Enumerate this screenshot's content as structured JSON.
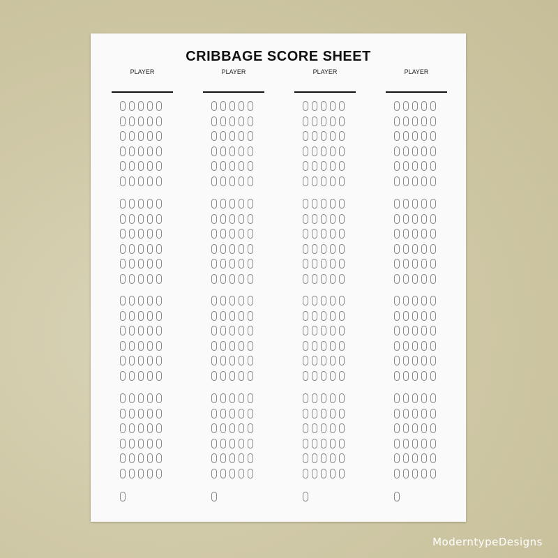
{
  "sheet": {
    "title": "CRIBBAGE SCORE SHEET",
    "players": [
      {
        "label": "PLAYER"
      },
      {
        "label": "PLAYER"
      },
      {
        "label": "PLAYER"
      },
      {
        "label": "PLAYER"
      }
    ],
    "groups_per_player": 4,
    "rows_per_group": 6,
    "holes_per_row": 5,
    "final_holes": 1
  },
  "watermark": "ModerntypeDesigns"
}
